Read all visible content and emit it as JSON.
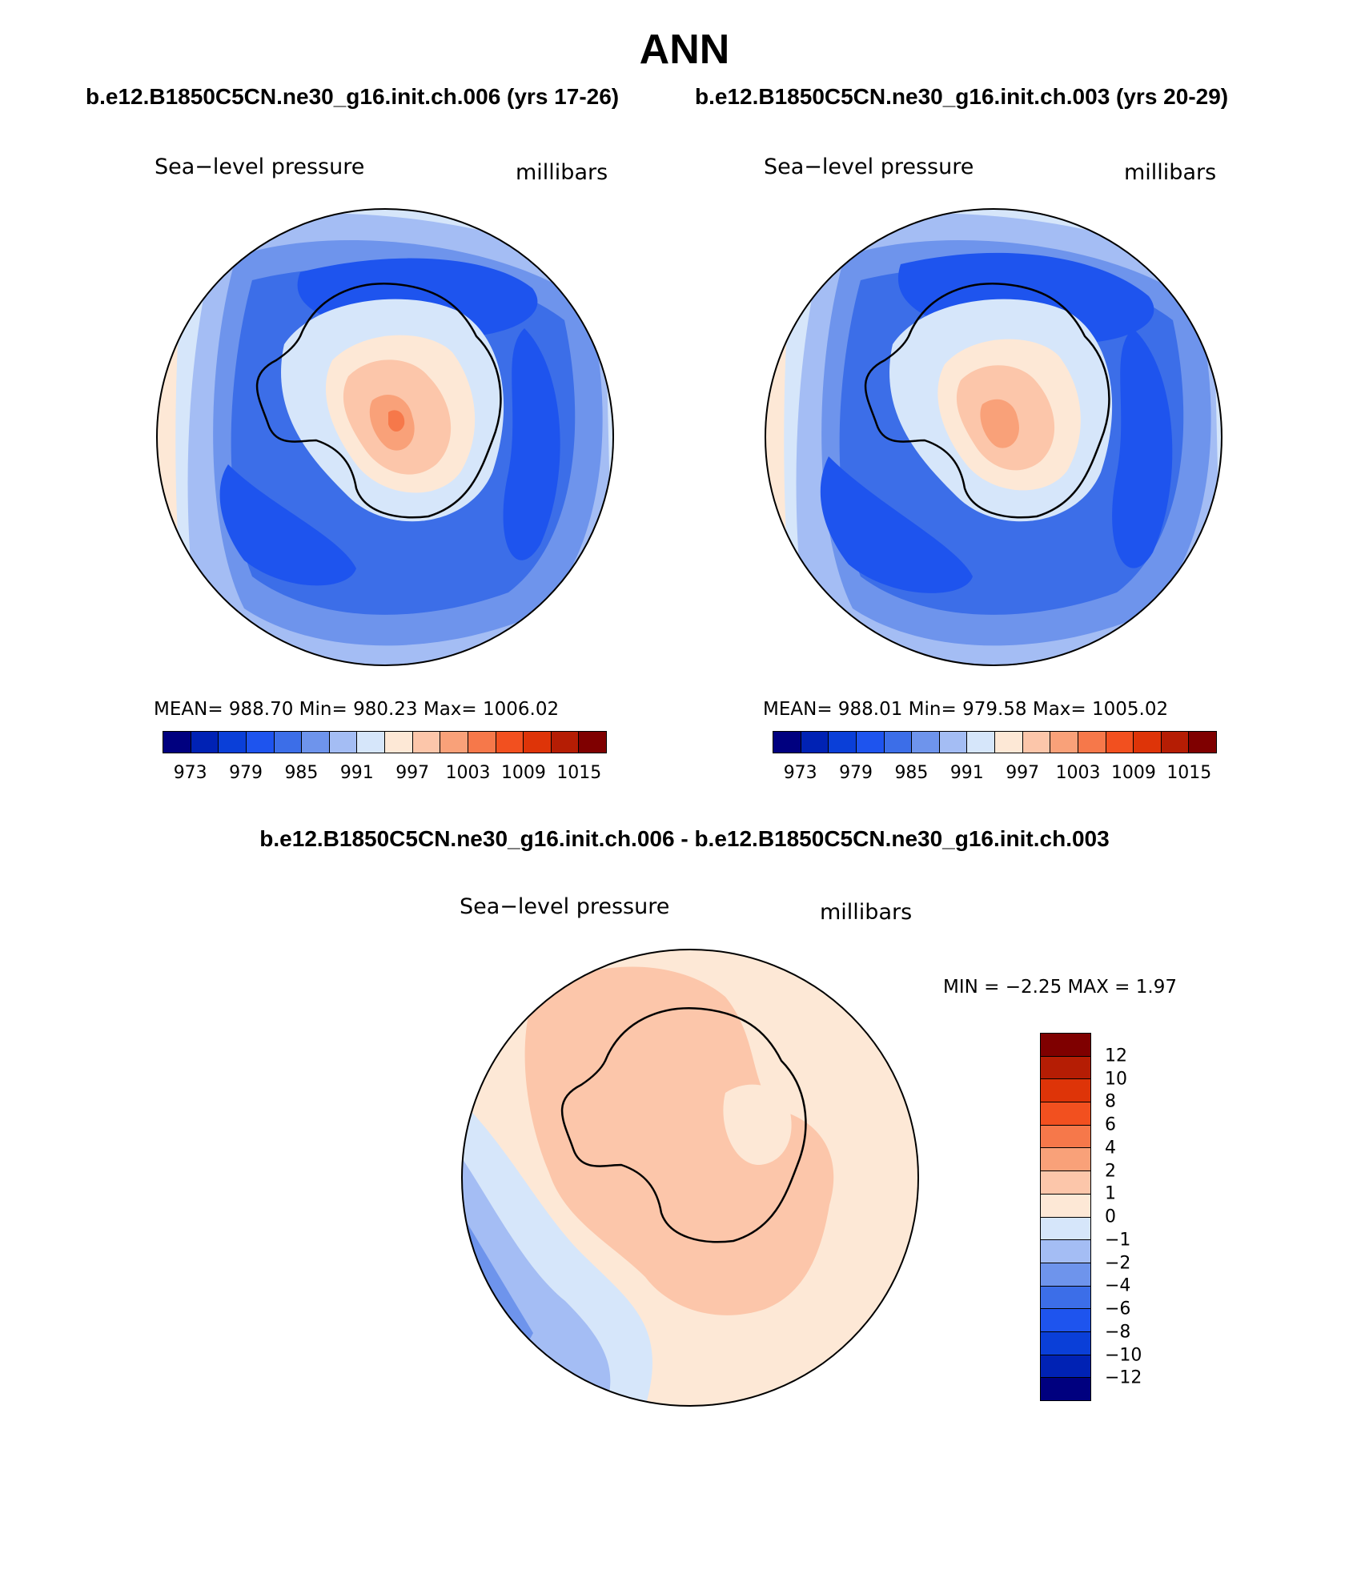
{
  "title": "ANN",
  "case_titles": [
    "b.e12.B1850C5CN.ne30_g16.init.ch.006 (yrs 17-26)",
    "b.e12.B1850C5CN.ne30_g16.init.ch.003 (yrs 20-29)"
  ],
  "diff_title": "b.e12.B1850C5CN.ne30_g16.init.ch.006 - b.e12.B1850C5CN.ne30_g16.init.ch.003",
  "panels": [
    {
      "variable": "Sea−level pressure",
      "units": "millibars",
      "stats": "MEAN=  988.70    Min=  980.23    Max=  1006.02"
    },
    {
      "variable": "Sea−level pressure",
      "units": "millibars",
      "stats": "MEAN=  988.01    Min=  979.58    Max=  1005.02"
    }
  ],
  "diff_panel": {
    "variable": "Sea−level pressure",
    "units": "millibars",
    "stats": "MIN =    −2.25  MAX =     1.97"
  },
  "colorbar": {
    "colors": [
      "#00007f",
      "#0022b4",
      "#0a3fd8",
      "#1e54ee",
      "#3c6ee8",
      "#6e94ec",
      "#a4bdf4",
      "#d6e6fa",
      "#fde8d6",
      "#fcc6aa",
      "#f9a179",
      "#f6784a",
      "#f2501f",
      "#de3408",
      "#b51d04",
      "#7f0000"
    ],
    "labels": [
      "973",
      "979",
      "985",
      "991",
      "997",
      "1003",
      "1009",
      "1015"
    ]
  },
  "diff_colorbar": {
    "colors": [
      "#7f0000",
      "#b51d04",
      "#de3408",
      "#f2501f",
      "#f6784a",
      "#f9a179",
      "#fcc6aa",
      "#fde8d6",
      "#d6e6fa",
      "#a4bdf4",
      "#6e94ec",
      "#3c6ee8",
      "#1e54ee",
      "#0a3fd8",
      "#0022b4",
      "#00007f"
    ],
    "labels": [
      "12",
      "10",
      "8",
      "6",
      "4",
      "2",
      "1",
      "0",
      "−1",
      "−2",
      "−4",
      "−6",
      "−8",
      "−10",
      "−12"
    ]
  },
  "map_fill_colors": {
    "ocean_outer": "#fde8d6",
    "band1": "#d6e6fa",
    "band2": "#a4bdf4",
    "band3": "#6e94ec",
    "band4": "#3c6ee8",
    "band5": "#1e54ee",
    "land_low": "#d6e6fa",
    "land_mid": "#fde8d6",
    "land_high": "#fcc6aa",
    "land_peak": "#f9a179",
    "land_top": "#f6784a",
    "diff_pos": "#fcc6aa",
    "diff_zero": "#fde8d6",
    "diff_neg1": "#d6e6fa",
    "diff_neg2": "#a4bdf4",
    "diff_neg3": "#6e94ec"
  }
}
